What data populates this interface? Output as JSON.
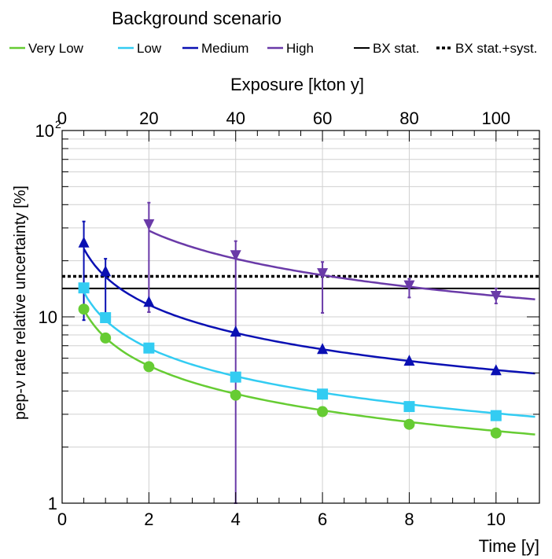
{
  "chart_data": {
    "type": "line",
    "title": "Background scenario",
    "xlabel": "Time [y]",
    "ylabel": "pep-ν rate relative uncertainty [%]",
    "x2label": "Exposure [kton y]",
    "xlim": [
      0,
      11
    ],
    "ylim": [
      1,
      100
    ],
    "yscale": "log",
    "x2lim": [
      0,
      110
    ],
    "x_ticks": [
      0,
      2,
      4,
      6,
      8,
      10
    ],
    "x2_ticks": [
      0,
      20,
      40,
      60,
      80,
      100
    ],
    "y_ticks": [
      {
        "label": "1",
        "value": 1,
        "exp": ""
      },
      {
        "label": "10",
        "value": 10,
        "exp": ""
      },
      {
        "label": "10",
        "value": 100,
        "exp": "2"
      }
    ],
    "grid": true,
    "legend_position": "top",
    "series": [
      {
        "name": "Very Low",
        "color": "#66cc33",
        "marker": "circle",
        "x": [
          0.5,
          1,
          2,
          4,
          6,
          8,
          10
        ],
        "y": [
          11.0,
          7.7,
          5.4,
          3.8,
          3.1,
          2.65,
          2.38
        ],
        "fit_coef": 7.72
      },
      {
        "name": "Low",
        "color": "#33ccf2",
        "marker": "square",
        "x": [
          0.5,
          1,
          2,
          4,
          6,
          8,
          10
        ],
        "y": [
          14.3,
          9.9,
          6.8,
          4.75,
          3.85,
          3.3,
          2.95
        ],
        "fit_coef": 9.6
      },
      {
        "name": "Medium",
        "color": "#0a10b3",
        "marker": "triangle-up",
        "x": [
          0.5,
          1,
          2,
          4,
          6,
          8,
          10
        ],
        "y": [
          25.0,
          17.5,
          12.0,
          8.3,
          6.7,
          5.8,
          5.15
        ],
        "fit_coef": 16.4,
        "err_low": [
          9.6,
          9.4,
          10.6,
          0,
          0,
          0,
          0
        ],
        "err_high": [
          32.5,
          20.5,
          0,
          0,
          0,
          0,
          0
        ]
      },
      {
        "name": "High",
        "color": "#6a3aa8",
        "marker": "triangle-down",
        "x": [
          2,
          4,
          6,
          8,
          10
        ],
        "y": [
          31.5,
          21.5,
          17.2,
          14.8,
          13.0
        ],
        "fit_coef": 41.0,
        "err_low": [
          10.6,
          1.0,
          10.5,
          12.7,
          11.8
        ],
        "err_high": [
          41.0,
          25.5,
          19.7,
          16.0,
          14.2
        ]
      }
    ],
    "reference_lines": [
      {
        "name": "BX stat.",
        "y": 14.2,
        "style": "solid",
        "color": "#000000"
      },
      {
        "name": "BX stat.+syst.",
        "y": 16.5,
        "style": "dotted",
        "color": "#000000"
      }
    ]
  }
}
